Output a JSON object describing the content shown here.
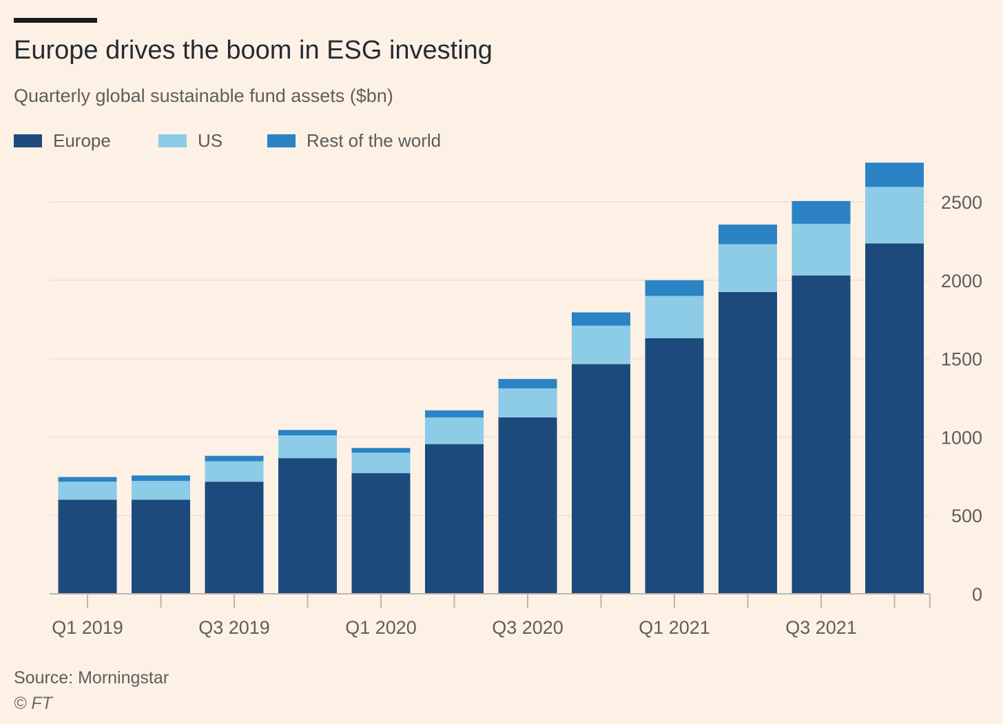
{
  "header": {
    "title": "Europe drives the boom in ESG investing",
    "subtitle": "Quarterly global sustainable fund assets ($bn)"
  },
  "footer": {
    "source": "Source: Morningstar",
    "copyright": "© FT"
  },
  "chart_data": {
    "type": "bar",
    "stacked": true,
    "title": "Europe drives the boom in ESG investing",
    "subtitle": "Quarterly global sustainable fund assets ($bn)",
    "categories": [
      "Q1 2019",
      "Q2 2019",
      "Q3 2019",
      "Q4 2019",
      "Q1 2020",
      "Q2 2020",
      "Q3 2020",
      "Q4 2020",
      "Q1 2021",
      "Q2 2021",
      "Q3 2021",
      "Q4 2021"
    ],
    "x_tick_labels": [
      "Q1 2019",
      "Q3 2019",
      "Q1 2020",
      "Q3 2020",
      "Q1 2021",
      "Q3 2021"
    ],
    "series": [
      {
        "name": "Europe",
        "color": "#1c4a7d",
        "values": [
          600,
          600,
          715,
          865,
          770,
          955,
          1125,
          1465,
          1630,
          1925,
          2030,
          2235
        ]
      },
      {
        "name": "US",
        "color": "#8ccce6",
        "values": [
          115,
          120,
          130,
          145,
          130,
          170,
          185,
          245,
          270,
          305,
          330,
          360
        ]
      },
      {
        "name": "Rest of the world",
        "color": "#2b82c4",
        "values": [
          30,
          35,
          35,
          35,
          30,
          45,
          60,
          85,
          100,
          125,
          145,
          155
        ]
      }
    ],
    "y_ticks": [
      0,
      500,
      1000,
      1500,
      2000,
      2500
    ],
    "ylim": [
      0,
      2750
    ],
    "y_axis_position": "right",
    "grid": true,
    "legend_position": "top-left"
  }
}
